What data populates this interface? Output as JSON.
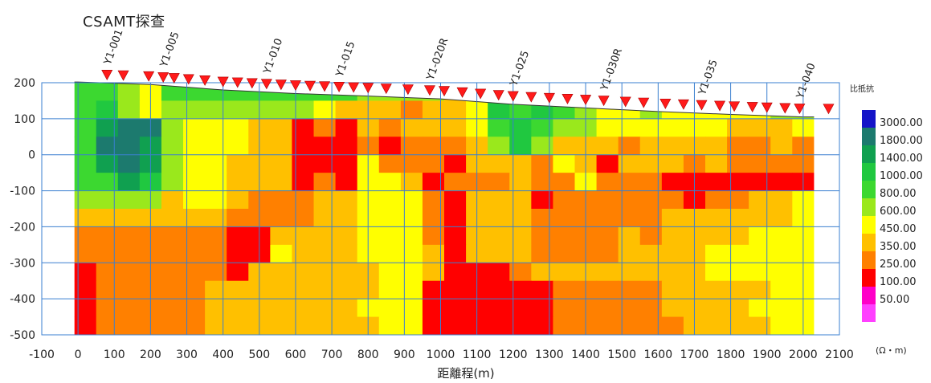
{
  "page": {
    "title": "CSAMT探查"
  },
  "chart_data": {
    "type": "heatmap",
    "title": "CSAMT探查",
    "xlabel": "距離程(m)",
    "ylabel": "",
    "xlim": [
      -100,
      2100
    ],
    "ylim": [
      -500,
      200
    ],
    "x_ticks": [
      "-100",
      "0",
      "100",
      "200",
      "300",
      "400",
      "500",
      "600",
      "700",
      "800",
      "900",
      "1000",
      "1100",
      "1200",
      "1300",
      "1400",
      "1500",
      "1600",
      "1700",
      "1800",
      "1900",
      "2000",
      "2100"
    ],
    "y_ticks": [
      "200",
      "100",
      "0",
      "-100",
      "-200",
      "-300",
      "-400",
      "-500"
    ],
    "grid": true,
    "legend": {
      "title": "比抵抗",
      "unit": "(Ω・m)",
      "placement": "right",
      "levels": [
        "3000.00",
        "1800.00",
        "1400.00",
        "1000.00",
        "800.00",
        "600.00",
        "450.00",
        "350.00",
        "250.00",
        "100.00",
        "50.00"
      ],
      "colors": [
        "#1414c8",
        "#1c7a6e",
        "#10a050",
        "#20c840",
        "#3cd830",
        "#9ae81c",
        "#ffff00",
        "#ffc000",
        "#ff8000",
        "#ff0000",
        "#ff00c8",
        "#ff40ff"
      ]
    },
    "surface": {
      "x": [
        0,
        200,
        400,
        500,
        600,
        800,
        1000,
        1200,
        1400,
        1600,
        1800,
        2000
      ],
      "elevation": [
        202,
        195,
        180,
        175,
        170,
        163,
        155,
        140,
        130,
        120,
        112,
        105
      ]
    },
    "stations": {
      "x": [
        80,
        125,
        195,
        235,
        265,
        305,
        350,
        400,
        440,
        480,
        520,
        560,
        600,
        640,
        680,
        720,
        760,
        800,
        850,
        910,
        970,
        1010,
        1060,
        1110,
        1160,
        1200,
        1250,
        1300,
        1350,
        1400,
        1450,
        1510,
        1560,
        1620,
        1670,
        1720,
        1770,
        1810,
        1860,
        1900,
        1950,
        1990,
        2070
      ],
      "labels": [
        {
          "text": "Y1-001",
          "x": 80
        },
        {
          "text": "Y1-005",
          "x": 235
        },
        {
          "text": "Y1-010",
          "x": 520
        },
        {
          "text": "Y1-015",
          "x": 720
        },
        {
          "text": "Y1-020R",
          "x": 970
        },
        {
          "text": "Y1-025",
          "x": 1200
        },
        {
          "text": "Y1-030R",
          "x": 1450
        },
        {
          "text": "Y1-035",
          "x": 1720
        },
        {
          "text": "Y1-040",
          "x": 1990
        }
      ]
    },
    "grid_x": [
      -10,
      50,
      110,
      170,
      230,
      290,
      350,
      410,
      470,
      530,
      590,
      650,
      710,
      770,
      830,
      890,
      950,
      1010,
      1070,
      1130,
      1190,
      1250,
      1310,
      1370,
      1430,
      1490,
      1550,
      1610,
      1670,
      1730,
      1790,
      1850,
      1910,
      1970,
      2030
    ],
    "grid_depths": [
      200,
      150,
      100,
      50,
      0,
      -50,
      -100,
      -150,
      -200,
      -250,
      -300,
      -350,
      -400,
      -450,
      -500
    ],
    "cells": [
      "4456444444444555579933455555555555",
      "4356555555567778776343456656666655",
      "4211566677989787776434556666667776",
      "4112566677999898887535777877778878",
      "4212566777999688897778679777878888",
      "4423566777989667988878868889999999",
      "5555766788877666897779888888988776",
      "7777777888877666897778888887777776",
      "8888888997777666897778888787777666",
      "8888888996777666797778888777766666",
      "9888888977777766799987777777766666",
      "9888887777777766999999888887777766",
      "9888887777777666999999888887777666",
      "9888887777777766999999888888777766"
    ]
  }
}
